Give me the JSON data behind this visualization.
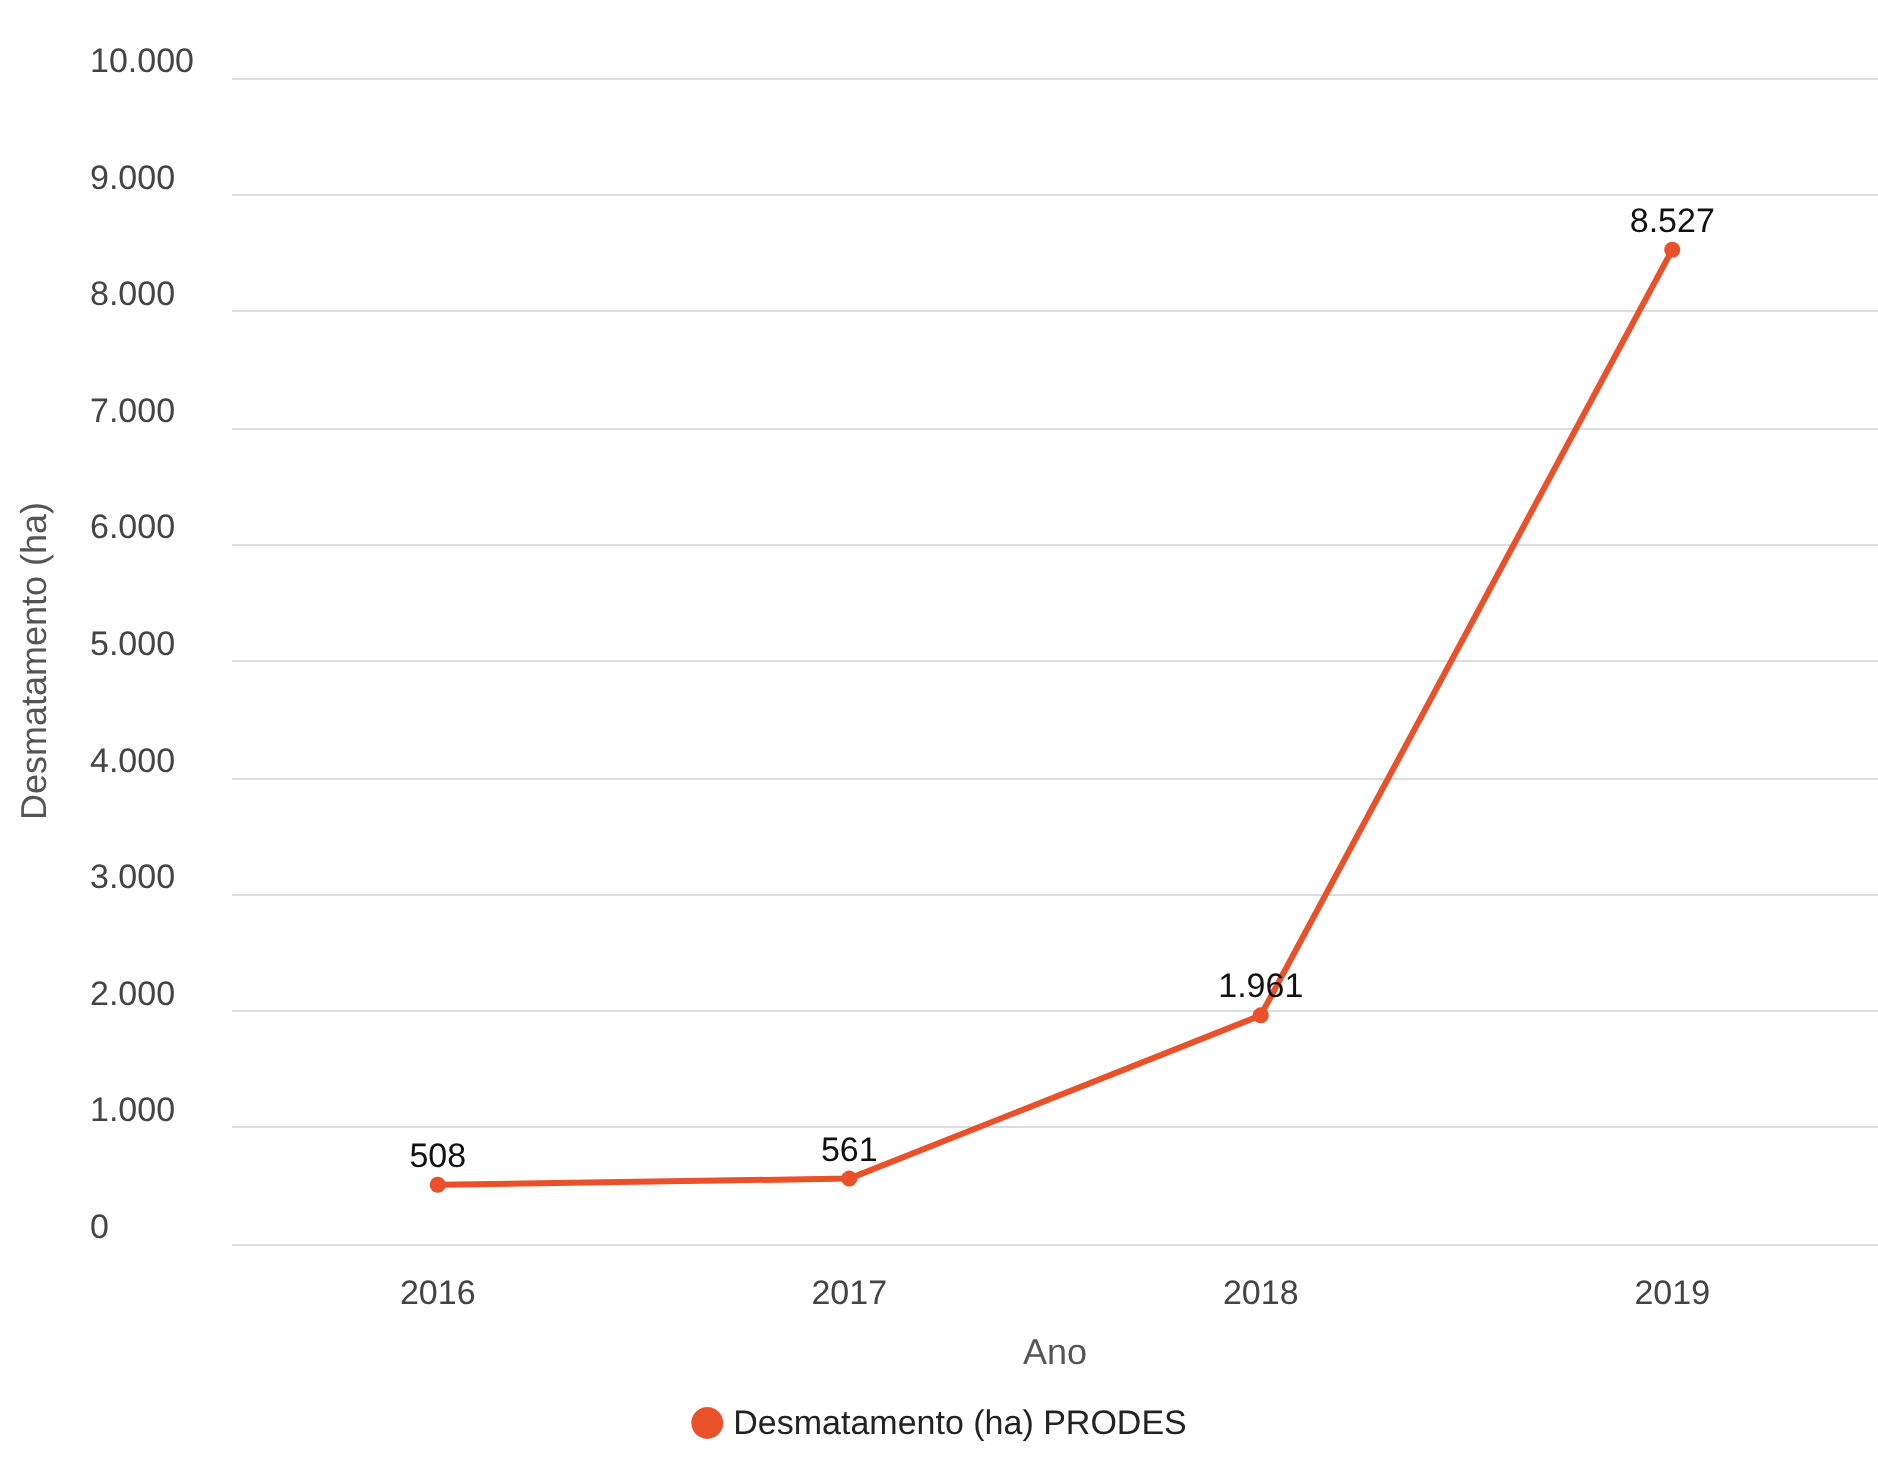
{
  "chart_data": {
    "type": "line",
    "xlabel": "Ano",
    "ylabel": "Desmatamento (ha)",
    "categories": [
      "2016",
      "2017",
      "2018",
      "2019"
    ],
    "series": [
      {
        "name": "Desmatamento (ha) PRODES",
        "color": "#e8512a",
        "values": [
          508,
          561,
          1961,
          8527
        ],
        "value_labels": [
          "508",
          "561",
          "1.961",
          "8.527"
        ]
      }
    ],
    "ylim": [
      0,
      10000
    ],
    "yticks": [
      {
        "value": 0,
        "label": "0"
      },
      {
        "value": 1000,
        "label": "1.000"
      },
      {
        "value": 2000,
        "label": "2.000"
      },
      {
        "value": 3000,
        "label": "3.000"
      },
      {
        "value": 4000,
        "label": "4.000"
      },
      {
        "value": 5000,
        "label": "5.000"
      },
      {
        "value": 6000,
        "label": "6.000"
      },
      {
        "value": 7000,
        "label": "7.000"
      },
      {
        "value": 8000,
        "label": "8.000"
      },
      {
        "value": 9000,
        "label": "9.000"
      },
      {
        "value": 10000,
        "label": "10.000"
      }
    ],
    "grid": "y",
    "legend": "bottom",
    "marker": "circle",
    "line_style": "solid"
  }
}
